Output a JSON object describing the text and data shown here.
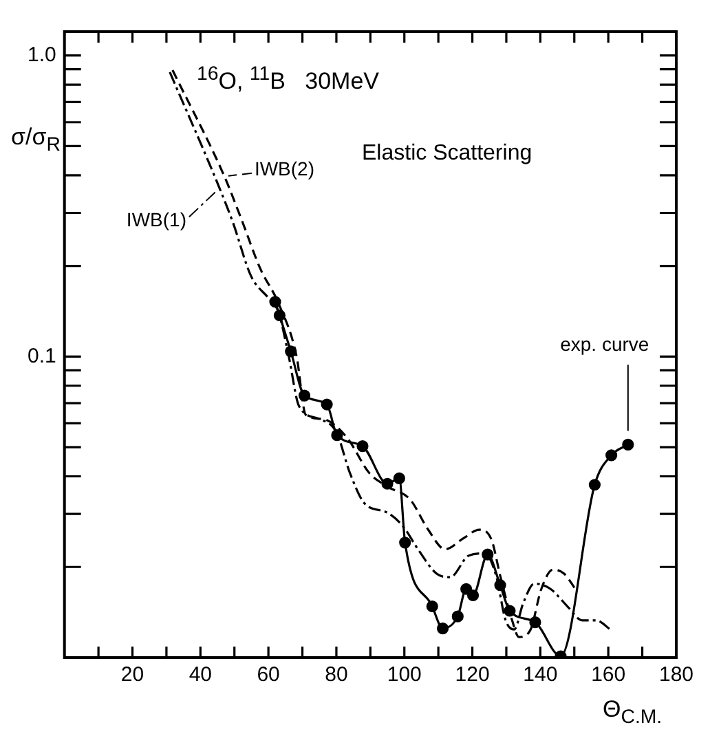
{
  "chart_data": {
    "type": "line",
    "title": "$^{16}$O, $^{11}$B   30MeV",
    "subtitle": "Elastic Scattering",
    "xlabel": "Θ$_{C.M.}$",
    "ylabel": "σ/σ$_{R}$",
    "log": "y",
    "xlim": [
      0,
      180
    ],
    "xticks": [
      {
        "value": 10,
        "label": null
      },
      20,
      {
        "value": 30,
        "label": null
      },
      40,
      {
        "value": 50,
        "label": null
      },
      60,
      {
        "value": 70,
        "label": null
      },
      80,
      {
        "value": 90,
        "label": null
      },
      100,
      {
        "value": 110,
        "label": null
      },
      120,
      {
        "value": 130,
        "label": null
      },
      140,
      {
        "value": 150,
        "label": null
      },
      160,
      {
        "value": 170,
        "label": null
      },
      180
    ],
    "ylim": [
      0.01,
      1.2
    ],
    "yticks": [
      {
        "value": 0.01,
        "label": null
      },
      {
        "value": 0.02,
        "label": null
      },
      {
        "value": 0.03,
        "label": null
      },
      {
        "value": 0.04,
        "label": null
      },
      {
        "value": 0.05,
        "label": null
      },
      {
        "value": 0.06,
        "label": null
      },
      {
        "value": 0.07,
        "label": null
      },
      {
        "value": 0.08,
        "label": null
      },
      {
        "value": 0.09,
        "label": null
      },
      0.1,
      {
        "value": 0.2,
        "label": null
      },
      {
        "value": 0.3,
        "label": null
      },
      {
        "value": 0.4,
        "label": null
      },
      {
        "value": 0.5,
        "label": null
      },
      {
        "value": 0.6,
        "label": null
      },
      {
        "value": 0.7,
        "label": null
      },
      {
        "value": 0.8,
        "label": null
      },
      {
        "value": 0.9,
        "label": null
      },
      {
        "value": 1,
        "label": "1.0"
      }
    ],
    "series": [
      {
        "name": "IWB(1)",
        "color": "#000000",
        "line_style": "dashdot",
        "marker": "none",
        "x": [
          31,
          45.6,
          49.6,
          54.9,
          60.3,
          63,
          66,
          69,
          75,
          80,
          84,
          88.3,
          95,
          99.6,
          104,
          109.5,
          113.5,
          118.9,
          123.7,
          127,
          129.8,
          132.3,
          135,
          138.2,
          143,
          148.2,
          152.3,
          156.3,
          161
        ],
        "values": [
          0.88,
          0.363,
          0.278,
          0.185,
          0.155,
          0.14,
          0.1,
          0.0685,
          0.062,
          0.056,
          0.041,
          0.0325,
          0.0303,
          0.0273,
          0.0229,
          0.019,
          0.0185,
          0.0218,
          0.0222,
          0.0187,
          0.0133,
          0.0124,
          0.0152,
          0.0176,
          0.0169,
          0.0147,
          0.0133,
          0.0133,
          0.0123
        ]
      },
      {
        "name": "IWB(2)",
        "color": "#000000",
        "line_style": "dashed",
        "marker": "none",
        "x": [
          31.8,
          47,
          52,
          57.6,
          63,
          68.3,
          71,
          76,
          83,
          89.7,
          95,
          101.7,
          107,
          112,
          117.6,
          122,
          125.6,
          128.2,
          131.7,
          133.7,
          137,
          140.3,
          143.7,
          147,
          150.3
        ],
        "values": [
          0.894,
          0.398,
          0.287,
          0.196,
          0.15,
          0.1,
          0.064,
          0.062,
          0.054,
          0.041,
          0.037,
          0.0335,
          0.0266,
          0.0229,
          0.025,
          0.0266,
          0.0247,
          0.0187,
          0.0133,
          0.0117,
          0.0123,
          0.0169,
          0.0196,
          0.019,
          0.0169
        ]
      },
      {
        "name": "exp. curve",
        "color": "#000000",
        "line_style": "solid",
        "marker": "circle",
        "x": [
          62,
          63.3,
          66.6,
          70.6,
          77.2,
          80.2,
          87.7,
          95,
          98.5,
          100.2,
          108.2,
          111.3,
          115.7,
          118.2,
          120.2,
          124.5,
          128.2,
          131,
          138.5,
          146,
          156,
          160.9,
          165.8
        ],
        "values": [
          0.152,
          0.137,
          0.104,
          0.0742,
          0.0693,
          0.0548,
          0.0504,
          0.0378,
          0.0394,
          0.0241,
          0.0148,
          0.0125,
          0.0137,
          0.0169,
          0.0161,
          0.022,
          0.0174,
          0.0143,
          0.0131,
          0.0101,
          0.0375,
          0.047,
          0.051
        ]
      }
    ]
  }
}
